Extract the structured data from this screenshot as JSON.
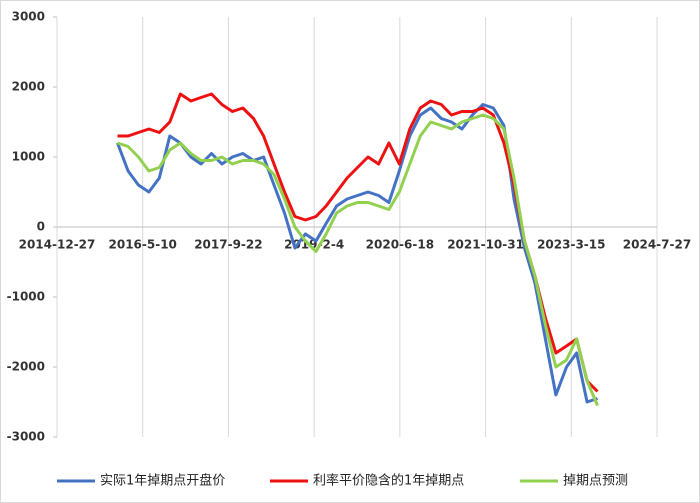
{
  "chart_data": {
    "type": "line",
    "xlim": [
      "2014-12-27",
      "2024-7-27"
    ],
    "xticks": [
      "2014-12-27",
      "2016-5-10",
      "2017-9-22",
      "2019-2-4",
      "2020-6-18",
      "2021-10-31",
      "2023-3-15",
      "2024-7-27"
    ],
    "ylim": [
      -3000,
      3000
    ],
    "yticks": [
      -3000,
      -2000,
      -1000,
      0,
      1000,
      2000,
      3000
    ],
    "grid": true,
    "legend": "bottom",
    "x": [
      "2015-12-15",
      "2016-2-15",
      "2016-4-15",
      "2016-6-15",
      "2016-8-15",
      "2016-10-15",
      "2016-12-15",
      "2017-2-15",
      "2017-4-15",
      "2017-6-15",
      "2017-8-15",
      "2017-10-15",
      "2017-12-15",
      "2018-2-15",
      "2018-4-15",
      "2018-6-15",
      "2018-8-15",
      "2018-10-15",
      "2018-12-15",
      "2019-2-15",
      "2019-4-15",
      "2019-6-15",
      "2019-8-15",
      "2019-10-15",
      "2019-12-15",
      "2020-2-15",
      "2020-4-15",
      "2020-6-15",
      "2020-8-15",
      "2020-10-15",
      "2020-12-15",
      "2021-2-15",
      "2021-4-15",
      "2021-6-15",
      "2021-8-15",
      "2021-10-15",
      "2021-12-15",
      "2022-2-15",
      "2022-4-15",
      "2022-6-15",
      "2022-8-15",
      "2022-10-15",
      "2022-12-15",
      "2023-2-15",
      "2023-4-15",
      "2023-6-15",
      "2023-8-15"
    ],
    "series": [
      {
        "name": "实际1年掉期点开盘价",
        "color": "#4472c4",
        "values": [
          1200,
          800,
          600,
          500,
          700,
          1300,
          1200,
          1000,
          900,
          1050,
          900,
          1000,
          1050,
          950,
          1000,
          600,
          200,
          -300,
          -100,
          -200,
          50,
          300,
          400,
          450,
          500,
          450,
          350,
          800,
          1300,
          1600,
          1700,
          1550,
          1500,
          1400,
          1600,
          1750,
          1700,
          1450,
          400,
          -300,
          -800,
          -1600,
          -2400,
          -2000,
          -1800,
          -2500,
          -2450
        ]
      },
      {
        "name": "利率平价隐含的1年掉期点",
        "color": "#ee1111",
        "values": [
          1300,
          1300,
          1350,
          1400,
          1350,
          1500,
          1900,
          1800,
          1850,
          1900,
          1750,
          1650,
          1700,
          1550,
          1300,
          900,
          500,
          150,
          100,
          150,
          300,
          500,
          700,
          850,
          1000,
          900,
          1200,
          900,
          1400,
          1700,
          1800,
          1750,
          1600,
          1650,
          1650,
          1700,
          1600,
          1200,
          600,
          -200,
          -700,
          -1300,
          -1800,
          -1700,
          -1600,
          -2200,
          -2350
        ]
      },
      {
        "name": "掉期点预测",
        "color": "#92d050",
        "values": [
          1200,
          1150,
          1000,
          800,
          850,
          1100,
          1200,
          1050,
          950,
          950,
          1000,
          900,
          950,
          950,
          900,
          750,
          400,
          0,
          -200,
          -350,
          -100,
          200,
          300,
          350,
          350,
          300,
          250,
          500,
          900,
          1300,
          1500,
          1450,
          1400,
          1500,
          1550,
          1600,
          1550,
          1400,
          700,
          -200,
          -700,
          -1400,
          -2000,
          -1900,
          -1600,
          -2200,
          -2550
        ]
      }
    ]
  }
}
